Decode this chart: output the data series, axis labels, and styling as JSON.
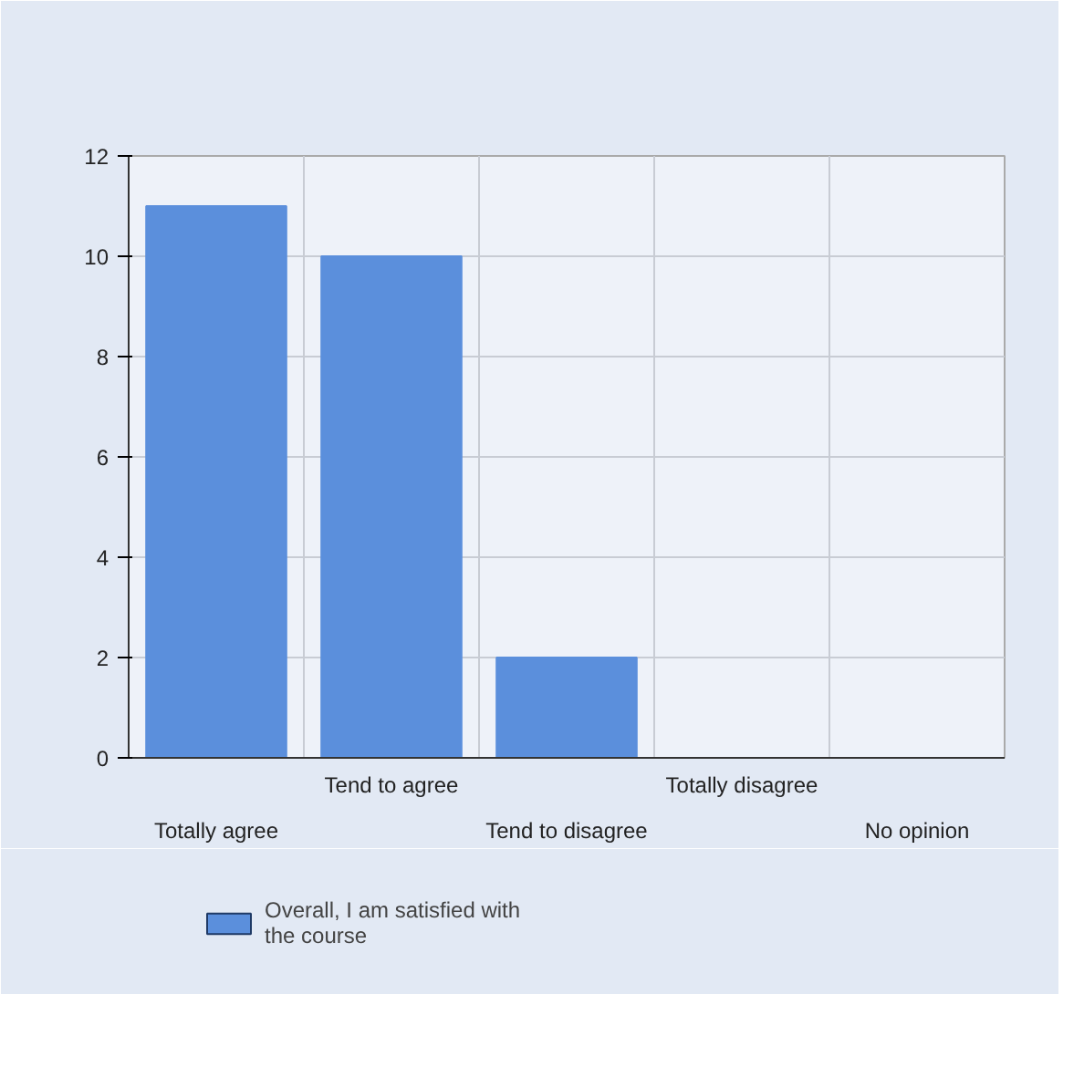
{
  "chart_data": {
    "type": "bar",
    "categories": [
      "Totally agree",
      "Tend to agree",
      "Tend to disagree",
      "Totally disagree",
      "No opinion"
    ],
    "series": [
      {
        "name": "Overall, I am satisfied with the course",
        "color": "#5b8fdc",
        "values": [
          11,
          10,
          2,
          0,
          0
        ]
      }
    ],
    "ylim": [
      0,
      12
    ],
    "yticks": [
      0,
      2,
      4,
      6,
      8,
      10,
      12
    ],
    "grid": true,
    "legend": "bottom"
  }
}
